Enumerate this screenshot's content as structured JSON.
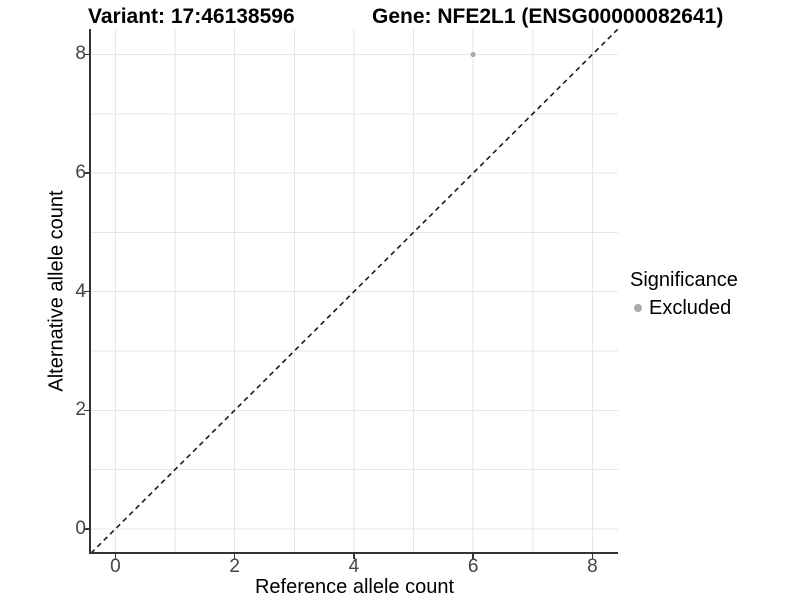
{
  "figure": {
    "title_left": "Variant: 17:46138596",
    "title_right": "Gene: NFE2L1 (ENSG00000082641)"
  },
  "chart_data": {
    "type": "scatter",
    "title_left": "Variant: 17:46138596",
    "title_right": "Gene: NFE2L1 (ENSG00000082641)",
    "xlabel": "Reference allele count",
    "ylabel": "Alternative allele count",
    "xlim": [
      -0.41,
      8.43
    ],
    "ylim": [
      -0.39,
      8.43
    ],
    "xticks": [
      0,
      2,
      4,
      6,
      8
    ],
    "yticks": [
      0,
      2,
      4,
      6,
      8
    ],
    "grid_x": [
      0,
      1,
      2,
      3,
      4,
      5,
      6,
      7,
      8
    ],
    "grid_y": [
      0,
      1,
      2,
      3,
      4,
      5,
      6,
      7,
      8
    ],
    "series": [
      {
        "name": "Excluded",
        "color": "#aaaaaa",
        "point_radius": 2.6,
        "points": [
          {
            "x": 6,
            "y": 8
          }
        ]
      }
    ],
    "identity_line": {
      "style": "dashed",
      "color": "#1a1a1a",
      "from": [
        -0.41,
        -0.41
      ],
      "to": [
        8.43,
        8.43
      ]
    },
    "legend": {
      "title": "Significance",
      "position": "right",
      "entries": [
        {
          "label": "Excluded",
          "color": "#aaaaaa"
        }
      ]
    },
    "colors": {
      "grid": "#e6e6e6",
      "axis_line": "#333333",
      "tick": "#333333",
      "tick_label": "#444444",
      "title": "#000000"
    }
  }
}
